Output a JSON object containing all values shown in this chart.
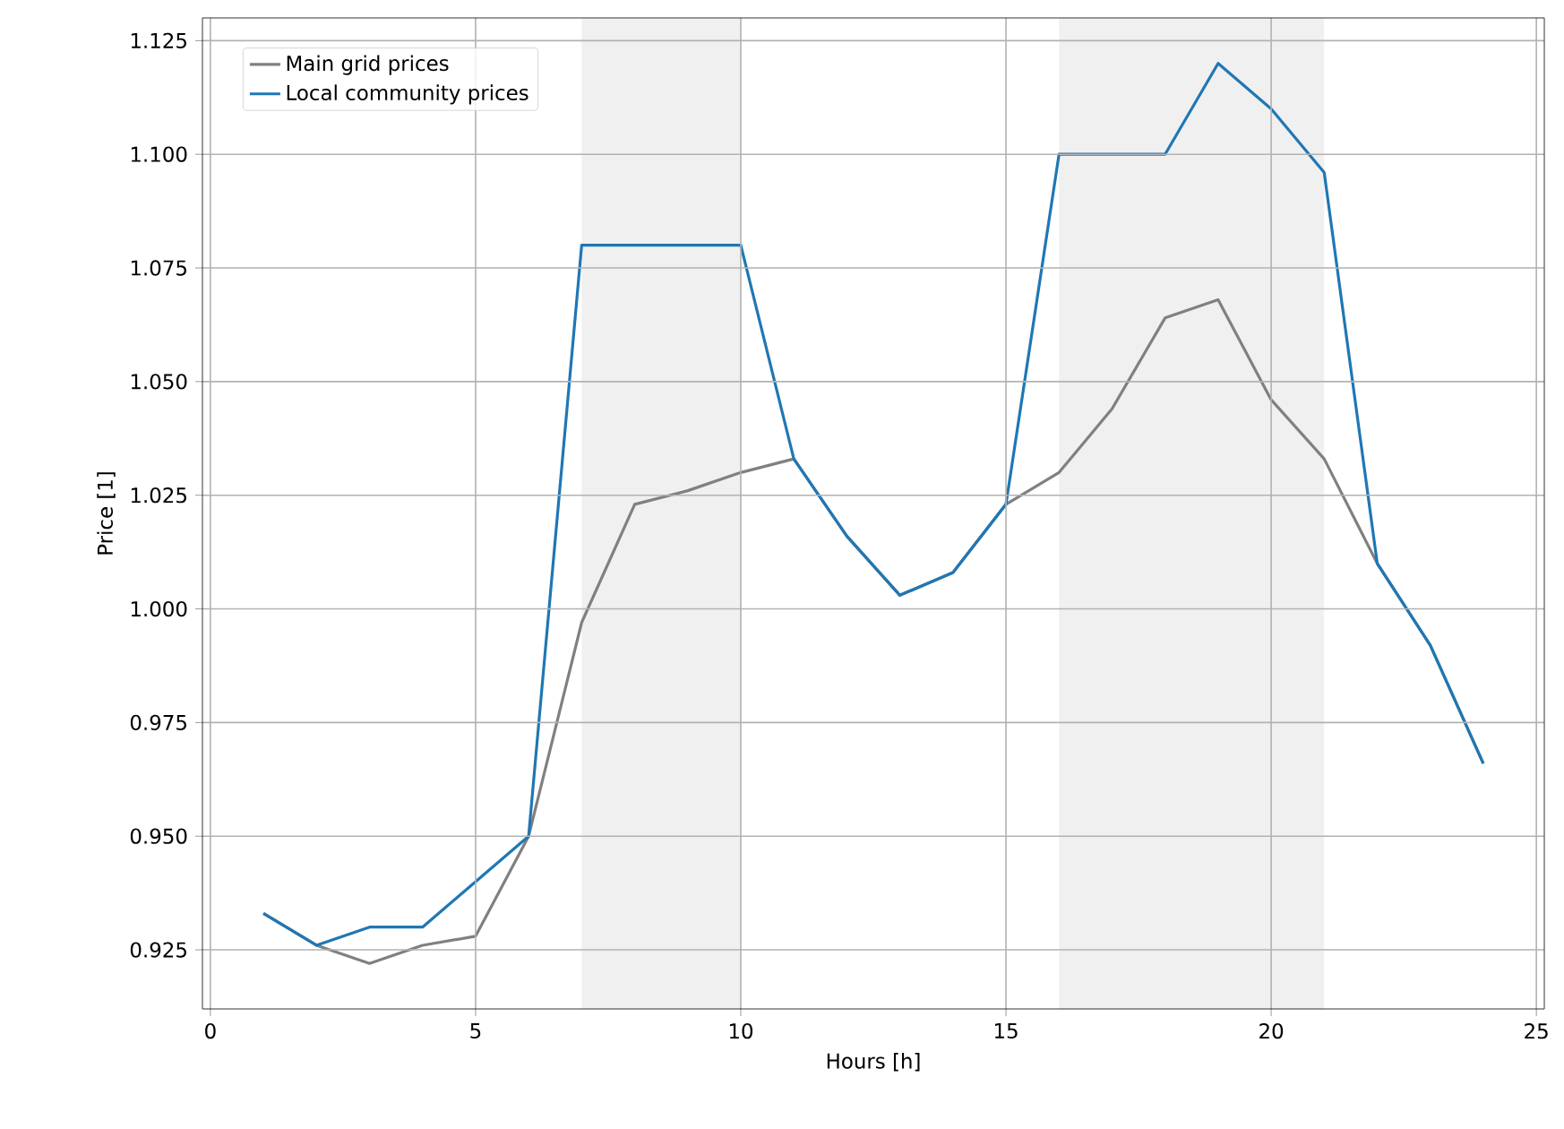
{
  "chart_data": {
    "type": "line",
    "xlabel": "Hours [h]",
    "ylabel": "Price [1]",
    "x": [
      1,
      2,
      3,
      4,
      5,
      6,
      7,
      8,
      9,
      10,
      11,
      12,
      13,
      14,
      15,
      16,
      17,
      18,
      19,
      20,
      21,
      22,
      23,
      24
    ],
    "series": [
      {
        "name": "Main grid prices",
        "color": "#808080",
        "values": [
          0.933,
          0.926,
          0.922,
          0.926,
          0.928,
          0.95,
          0.997,
          1.023,
          1.026,
          1.03,
          1.033,
          1.016,
          1.003,
          1.008,
          1.023,
          1.03,
          1.044,
          1.064,
          1.068,
          1.046,
          1.033,
          1.01,
          0.992,
          0.966
        ]
      },
      {
        "name": "Local community prices",
        "color": "#1f77b4",
        "values": [
          0.933,
          0.926,
          0.93,
          0.93,
          0.94,
          0.95,
          1.08,
          1.08,
          1.08,
          1.08,
          1.033,
          1.016,
          1.003,
          1.008,
          1.023,
          1.1,
          1.1,
          1.1,
          1.12,
          1.11,
          1.096,
          1.01,
          0.992,
          0.966
        ]
      }
    ],
    "bands": [
      {
        "axis": "x",
        "from": 7,
        "to": 10,
        "color": "#f0f0f0"
      },
      {
        "axis": "x",
        "from": 16,
        "to": 21,
        "color": "#f0f0f0"
      }
    ],
    "xlim": [
      -0.15,
      25.15
    ],
    "ylim": [
      0.912,
      1.13
    ],
    "xticks": [
      0,
      5,
      10,
      15,
      20,
      25
    ],
    "yticks": [
      {
        "value": 0.925,
        "label": "0.925"
      },
      {
        "value": 0.95,
        "label": "0.950"
      },
      {
        "value": 0.975,
        "label": "0.975"
      },
      {
        "value": 1.0,
        "label": "1.000"
      },
      {
        "value": 1.025,
        "label": "1.025"
      },
      {
        "value": 1.05,
        "label": "1.050"
      },
      {
        "value": 1.075,
        "label": "1.075"
      },
      {
        "value": 1.1,
        "label": "1.100"
      },
      {
        "value": 1.125,
        "label": "1.125"
      }
    ],
    "grid": true,
    "legend": "top left",
    "marker": "none",
    "line_style": "solid"
  }
}
